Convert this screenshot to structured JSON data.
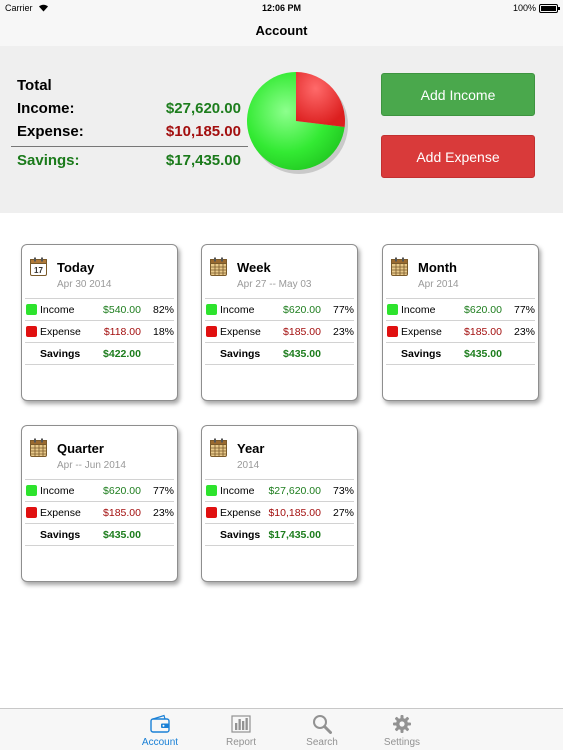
{
  "status_bar": {
    "carrier": "Carrier",
    "time": "12:06 PM",
    "battery": "100%"
  },
  "nav": {
    "title": "Account"
  },
  "summary": {
    "total_label": "Total",
    "income_label": "Income:",
    "income_value": "$27,620.00",
    "expense_label": "Expense:",
    "expense_value": "$10,185.00",
    "savings_label": "Savings:",
    "savings_value": "$17,435.00",
    "pie": {
      "income_fraction": 0.7306,
      "expense_fraction": 0.2694,
      "income_color": "#2ee82e",
      "expense_color": "#e42222"
    }
  },
  "buttons": {
    "add_income": "Add Income",
    "add_expense": "Add Expense"
  },
  "colors": {
    "income_button": "#4aa84c",
    "expense_button": "#d93a3a",
    "accent": "#1a80d6"
  },
  "cards": [
    {
      "title": "Today",
      "subtitle": "Apr 30 2014",
      "icon": "calendar-17-icon",
      "income_label": "Income",
      "income": "$540.00",
      "income_pct": "82%",
      "expense_label": "Expense",
      "expense": "$118.00",
      "expense_pct": "18%",
      "savings_label": "Savings",
      "savings": "$422.00"
    },
    {
      "title": "Week",
      "subtitle": "Apr 27 -- May 03",
      "icon": "calendar-grid-icon",
      "income_label": "Income",
      "income": "$620.00",
      "income_pct": "77%",
      "expense_label": "Expense",
      "expense": "$185.00",
      "expense_pct": "23%",
      "savings_label": "Savings",
      "savings": "$435.00"
    },
    {
      "title": "Month",
      "subtitle": "Apr 2014",
      "icon": "calendar-grid-icon",
      "income_label": "Income",
      "income": "$620.00",
      "income_pct": "77%",
      "expense_label": "Expense",
      "expense": "$185.00",
      "expense_pct": "23%",
      "savings_label": "Savings",
      "savings": "$435.00"
    },
    {
      "title": "Quarter",
      "subtitle": "Apr -- Jun 2014",
      "icon": "calendar-grid-icon",
      "income_label": "Income",
      "income": "$620.00",
      "income_pct": "77%",
      "expense_label": "Expense",
      "expense": "$185.00",
      "expense_pct": "23%",
      "savings_label": "Savings",
      "savings": "$435.00"
    },
    {
      "title": "Year",
      "subtitle": "2014",
      "icon": "calendar-grid-icon",
      "income_label": "Income",
      "income": "$27,620.00",
      "income_pct": "73%",
      "expense_label": "Expense",
      "expense": "$10,185.00",
      "expense_pct": "27%",
      "savings_label": "Savings",
      "savings": "$17,435.00"
    }
  ],
  "tabs": [
    {
      "label": "Account",
      "icon": "wallet-icon",
      "active": true
    },
    {
      "label": "Report",
      "icon": "bar-chart-icon",
      "active": false
    },
    {
      "label": "Search",
      "icon": "magnifier-icon",
      "active": false
    },
    {
      "label": "Settings",
      "icon": "gear-icon",
      "active": false
    }
  ]
}
